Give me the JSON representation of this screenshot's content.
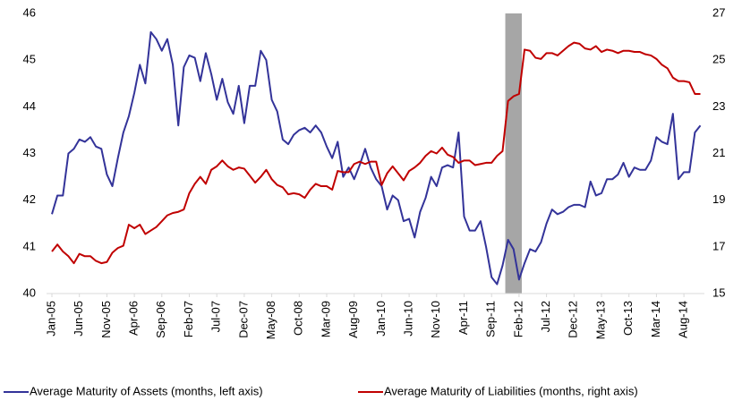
{
  "chart_data": {
    "type": "line",
    "categories": [
      "Jan-05",
      null,
      null,
      null,
      null,
      "Jun-05",
      null,
      null,
      null,
      null,
      "Nov-05",
      null,
      null,
      null,
      null,
      "Apr-06",
      null,
      null,
      null,
      null,
      "Sep-06",
      null,
      null,
      null,
      null,
      "Feb-07",
      null,
      null,
      null,
      null,
      "Jul-07",
      null,
      null,
      null,
      null,
      "Dec-07",
      null,
      null,
      null,
      null,
      "May-08",
      null,
      null,
      null,
      null,
      "Oct-08",
      null,
      null,
      null,
      null,
      "Mar-09",
      null,
      null,
      null,
      null,
      "Aug-09",
      null,
      null,
      null,
      null,
      "Jan-10",
      null,
      null,
      null,
      null,
      "Jun-10",
      null,
      null,
      null,
      null,
      "Nov-10",
      null,
      null,
      null,
      null,
      "Apr-11",
      null,
      null,
      null,
      null,
      "Sep-11",
      null,
      null,
      null,
      null,
      "Feb-12",
      null,
      null,
      null,
      null,
      "Jul-12",
      null,
      null,
      null,
      null,
      "Dec-12",
      null,
      null,
      null,
      null,
      "May-13",
      null,
      null,
      null,
      null,
      "Oct-13",
      null,
      null,
      null,
      null,
      "Mar-14",
      null,
      null,
      null,
      null,
      "Aug-14",
      null,
      null,
      null
    ],
    "series": [
      {
        "name": "Average Maturity of Assets (months, left axis)",
        "color": "#333399",
        "axis": "y",
        "values": [
          41.7,
          42.1,
          42.1,
          43.0,
          43.1,
          43.3,
          43.25,
          43.35,
          43.15,
          43.1,
          42.55,
          42.3,
          42.9,
          43.45,
          43.8,
          44.3,
          44.9,
          44.5,
          45.6,
          45.45,
          45.2,
          45.45,
          44.9,
          43.6,
          44.85,
          45.1,
          45.05,
          44.55,
          45.15,
          44.7,
          44.15,
          44.6,
          44.1,
          43.85,
          44.45,
          43.65,
          44.45,
          44.45,
          45.2,
          45.0,
          44.15,
          43.9,
          43.3,
          43.2,
          43.4,
          43.5,
          43.55,
          43.45,
          43.6,
          43.45,
          43.15,
          42.9,
          43.25,
          42.5,
          42.7,
          42.45,
          42.75,
          43.1,
          42.7,
          42.45,
          42.3,
          41.8,
          42.1,
          42.0,
          41.55,
          41.6,
          41.2,
          41.75,
          42.05,
          42.5,
          42.3,
          42.7,
          42.75,
          42.7,
          43.45,
          41.65,
          41.35,
          41.35,
          41.55,
          41.0,
          40.35,
          40.2,
          40.6,
          41.15,
          40.95,
          40.3,
          40.65,
          40.95,
          40.9,
          41.1,
          41.5,
          41.8,
          41.7,
          41.75,
          41.85,
          41.9,
          41.9,
          41.85,
          42.4,
          42.1,
          42.15,
          42.45,
          42.45,
          42.55,
          42.8,
          42.5,
          42.7,
          42.65,
          42.65,
          42.85,
          43.35,
          43.25,
          43.2,
          43.85,
          42.45,
          42.6,
          42.6,
          43.45,
          43.6
        ]
      },
      {
        "name": "Average Maturity of Liabilities (months, right axis)",
        "color": "#c00000",
        "axis": "y2",
        "values": [
          16.8,
          17.1,
          16.8,
          16.6,
          16.3,
          16.7,
          16.6,
          16.6,
          16.4,
          16.3,
          16.35,
          16.75,
          16.95,
          17.05,
          17.95,
          17.8,
          17.95,
          17.55,
          17.7,
          17.85,
          18.1,
          18.35,
          18.45,
          18.5,
          18.6,
          19.3,
          19.7,
          20.0,
          19.7,
          20.3,
          20.45,
          20.7,
          20.45,
          20.3,
          20.4,
          20.35,
          20.05,
          19.75,
          20.0,
          20.3,
          19.9,
          19.65,
          19.55,
          19.25,
          19.3,
          19.25,
          19.1,
          19.45,
          19.7,
          19.6,
          19.6,
          19.45,
          20.25,
          20.2,
          20.2,
          20.55,
          20.65,
          20.55,
          20.65,
          20.65,
          19.65,
          20.15,
          20.45,
          20.15,
          19.85,
          20.25,
          20.4,
          20.6,
          20.9,
          21.1,
          21.0,
          21.25,
          20.95,
          20.85,
          20.6,
          20.7,
          20.7,
          20.5,
          20.55,
          20.6,
          20.6,
          20.9,
          21.1,
          23.25,
          23.45,
          23.55,
          25.45,
          25.4,
          25.1,
          25.05,
          25.3,
          25.3,
          25.2,
          25.4,
          25.6,
          25.75,
          25.7,
          25.5,
          25.45,
          25.6,
          25.35,
          25.45,
          25.4,
          25.3,
          25.4,
          25.4,
          25.35,
          25.35,
          25.25,
          25.2,
          25.05,
          24.8,
          24.65,
          24.25,
          24.1,
          24.1,
          24.05,
          23.55,
          23.55
        ]
      }
    ],
    "shaded_span": [
      83,
      85
    ],
    "shade_color": "#a6a6a6",
    "ylim": [
      40,
      46
    ],
    "yticks": [
      40,
      41,
      42,
      43,
      44,
      45,
      46
    ],
    "y2lim": [
      15,
      27
    ],
    "y2ticks": [
      15,
      17,
      19,
      21,
      23,
      25,
      27
    ],
    "grid": false,
    "legend": "bottom"
  }
}
